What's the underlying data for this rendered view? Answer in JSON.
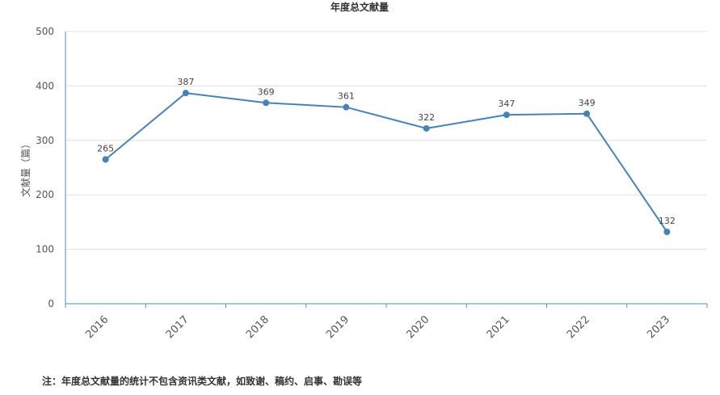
{
  "chart_data": {
    "type": "line",
    "title": "年度总文献量",
    "xlabel": "",
    "ylabel": "文献量（篇）",
    "categories": [
      "2016",
      "2017",
      "2018",
      "2019",
      "2020",
      "2021",
      "2022",
      "2023"
    ],
    "series": [
      {
        "values": [
          265,
          387,
          369,
          361,
          322,
          347,
          349,
          132
        ],
        "color": "#4682b4"
      }
    ],
    "ylim": [
      0,
      500
    ],
    "yticks": [
      "0",
      "100",
      "200",
      "300",
      "400",
      "500"
    ],
    "data_labels": [
      "265",
      "387",
      "369",
      "361",
      "322",
      "347",
      "349",
      "132"
    ],
    "grid": true,
    "legend": "none"
  },
  "footnote": "注：年度总文献量的统计不包含资讯类文献，如致谢、稿约、启事、勘误等",
  "colors": {
    "line": "#4682b4",
    "grid": "#e0e0e0",
    "axis": "#4a90c2"
  }
}
